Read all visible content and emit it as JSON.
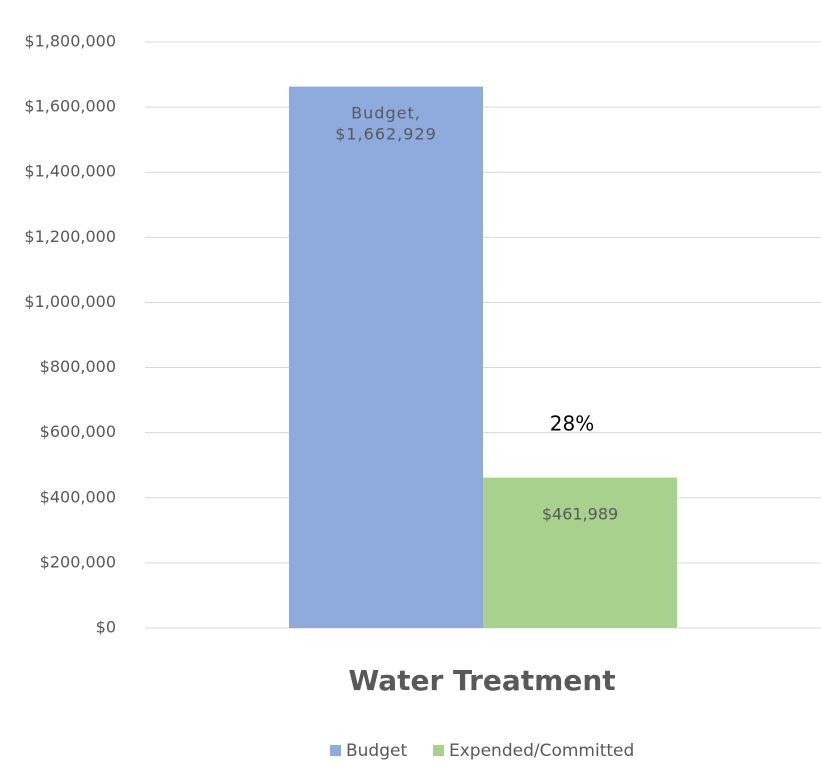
{
  "chart_data": {
    "type": "bar",
    "categories": [
      "Water Treatment"
    ],
    "series": [
      {
        "name": "Budget",
        "color": "#8faadc",
        "values": [
          1662929
        ],
        "value_labels": [
          "Budget, $1,662,929"
        ]
      },
      {
        "name": "Expended/Committed",
        "color": "#a9d18e",
        "values": [
          461989
        ],
        "value_labels": [
          "$461,989"
        ]
      }
    ],
    "annotation": "28%",
    "ylim": [
      0,
      1800000
    ],
    "yticks": [
      {
        "value": 0,
        "label": "$0"
      },
      {
        "value": 200000,
        "label": "$200,000"
      },
      {
        "value": 400000,
        "label": "$400,000"
      },
      {
        "value": 600000,
        "label": "$600,000"
      },
      {
        "value": 800000,
        "label": "$800,000"
      },
      {
        "value": 1000000,
        "label": "$1,000,000"
      },
      {
        "value": 1200000,
        "label": "$1,200,000"
      },
      {
        "value": 1400000,
        "label": "$1,400,000"
      },
      {
        "value": 1600000,
        "label": "$1,600,000"
      },
      {
        "value": 1800000,
        "label": "$1,800,000"
      }
    ],
    "grid": true,
    "legend": "bottom"
  }
}
